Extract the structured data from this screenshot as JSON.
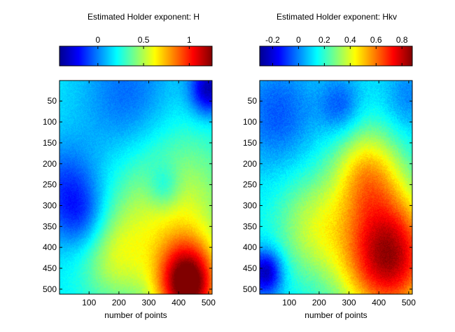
{
  "chart_data": [
    {
      "type": "heatmap",
      "title": "Estimated Holder exponent: H",
      "xlabel": "number of points",
      "ylabel": "",
      "xlim": [
        1,
        512
      ],
      "ylim": [
        512,
        1
      ],
      "x_ticks": [
        100,
        200,
        300,
        400,
        500
      ],
      "y_ticks": [
        50,
        100,
        150,
        200,
        250,
        300,
        350,
        400,
        450,
        500
      ],
      "colorbar": {
        "colormap": "jet",
        "range": [
          -0.42,
          1.25
        ],
        "ticks": [
          0,
          0.5,
          1
        ],
        "tick_labels": [
          "0",
          "0.5",
          "1"
        ]
      },
      "field_description": {
        "background_value": 0.18,
        "low_regions": [
          {
            "x": 20,
            "y": 260,
            "value": -0.1,
            "spread": 80
          },
          {
            "x": 230,
            "y": 40,
            "value": -0.05,
            "spread": 110
          },
          {
            "x": 350,
            "y": 255,
            "value": -0.05,
            "spread": 40
          },
          {
            "x": 80,
            "y": 330,
            "value": -0.05,
            "spread": 60
          },
          {
            "x": 500,
            "y": 20,
            "value": -0.35,
            "spread": 45
          }
        ],
        "high_regions": [
          {
            "x": 430,
            "y": 490,
            "value": 1.2,
            "spread": 70
          },
          {
            "x": 380,
            "y": 330,
            "value": 0.6,
            "spread": 140
          },
          {
            "x": 180,
            "y": 420,
            "value": 0.45,
            "spread": 80
          }
        ]
      }
    },
    {
      "type": "heatmap",
      "title": "Estimated Holder exponent: Hkv",
      "xlabel": "number of points",
      "ylabel": "",
      "xlim": [
        1,
        512
      ],
      "ylim": [
        512,
        1
      ],
      "x_ticks": [
        100,
        200,
        300,
        400,
        500
      ],
      "y_ticks": [
        50,
        100,
        150,
        200,
        250,
        300,
        350,
        400,
        450,
        500
      ],
      "colorbar": {
        "colormap": "jet",
        "range": [
          -0.3,
          0.88
        ],
        "ticks": [
          -0.2,
          0,
          0.2,
          0.4,
          0.6,
          0.8
        ],
        "tick_labels": [
          "-0.2",
          "0",
          "0.2",
          "0.4",
          "0.6",
          "0.8"
        ]
      },
      "field_description": {
        "background_value": 0.12,
        "low_regions": [
          {
            "x": 60,
            "y": 80,
            "value": -0.05,
            "spread": 90
          },
          {
            "x": 270,
            "y": 60,
            "value": -0.05,
            "spread": 50
          },
          {
            "x": 20,
            "y": 460,
            "value": -0.25,
            "spread": 40
          },
          {
            "x": 500,
            "y": 40,
            "value": 0.0,
            "spread": 60
          }
        ],
        "high_regions": [
          {
            "x": 430,
            "y": 420,
            "value": 0.85,
            "spread": 110
          },
          {
            "x": 360,
            "y": 220,
            "value": 0.45,
            "spread": 80
          },
          {
            "x": 180,
            "y": 350,
            "value": 0.35,
            "spread": 90
          }
        ]
      }
    }
  ]
}
